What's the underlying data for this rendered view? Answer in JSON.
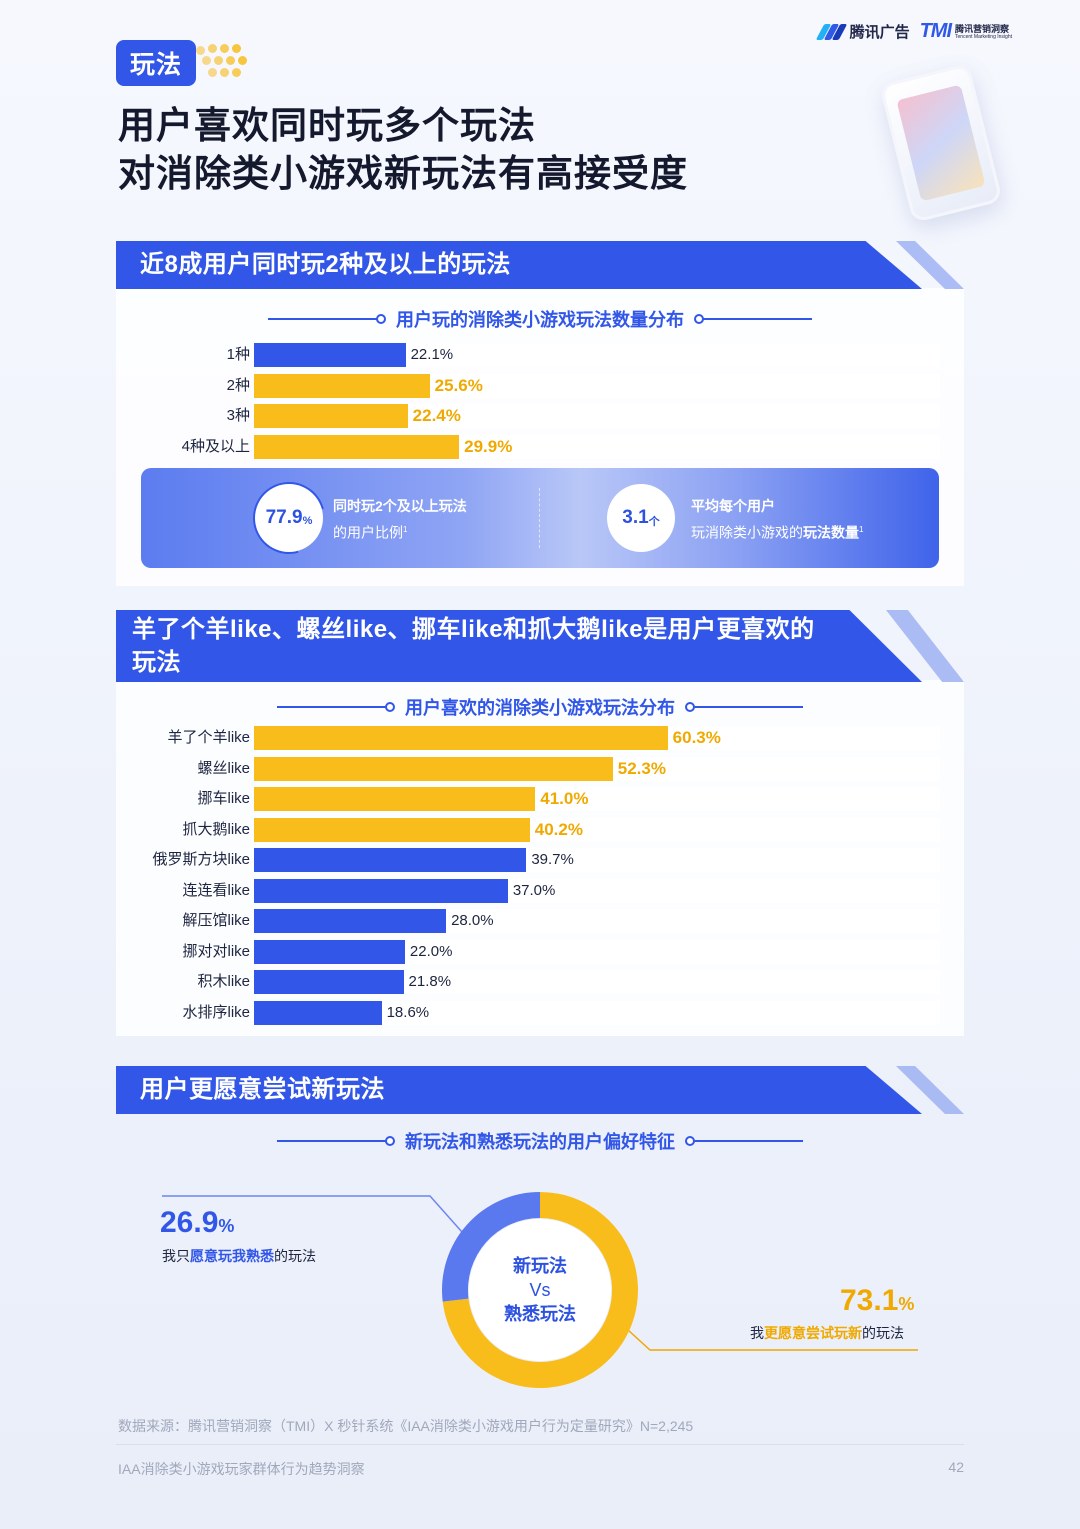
{
  "header": {
    "logo_tencent": "腾讯广告",
    "logo_tmi_mark": "TMI",
    "logo_tmi_cn": "腾讯营销洞察",
    "logo_tmi_en": "Tencent Marketing Insight"
  },
  "tag": "玩法",
  "title_line1": "用户喜欢同时玩多个玩法",
  "title_line2": "对消除类小游戏新玩法有高接受度",
  "section1": {
    "banner": "近8成用户同时玩2种及以上的玩法",
    "chart_title": "用户玩的消除类小游戏玩法数量分布",
    "stat1_value": "77.9",
    "stat1_unit": "%",
    "stat1_line1": "同时玩2个及以上玩法",
    "stat1_line2": "的用户比例",
    "stat2_value": "3.1",
    "stat2_unit": "个",
    "stat2_line1": "平均每个用户",
    "stat2_line2_a": "玩消除类小游戏的",
    "stat2_line2_b": "玩法数量",
    "footnote_mark": "1"
  },
  "section2": {
    "banner_line1": "羊了个羊like、螺丝like、挪车like和抓大鹅like是用户更喜欢的",
    "banner_line2": "玩法",
    "chart_title": "用户喜欢的消除类小游戏玩法分布"
  },
  "section3": {
    "banner": "用户更愿意尝试新玩法",
    "chart_title": "新玩法和熟悉玩法的用户偏好特征",
    "center_line1": "新玩法",
    "center_line2": "Vs",
    "center_line3": "熟悉玩法",
    "familiar_value": "26.9",
    "familiar_unit": "%",
    "familiar_desc_a": "我只",
    "familiar_desc_b": "愿意玩我熟悉",
    "familiar_desc_c": "的玩法",
    "new_value": "73.1",
    "new_unit": "%",
    "new_desc_a": "我",
    "new_desc_b": "更愿意尝试玩新",
    "new_desc_c": "的玩法"
  },
  "source": "数据来源：腾讯营销洞察（TMI）X 秒针系统《IAA消除类小游戏用户行为定量研究》N=2,245",
  "footer": {
    "left": "IAA消除类小游戏玩家群体行为趋势洞察",
    "page": "42"
  },
  "colors": {
    "blue": "#3257e8",
    "yellow": "#f9bd1b",
    "yellow_text": "#f0a900"
  },
  "chart_data": [
    {
      "type": "bar",
      "orientation": "horizontal",
      "title": "用户玩的消除类小游戏玩法数量分布",
      "categories": [
        "1种",
        "2种",
        "3种",
        "4种及以上"
      ],
      "values": [
        22.1,
        25.6,
        22.4,
        29.9
      ],
      "labels": [
        "22.1%",
        "25.6%",
        "22.4%",
        "29.9%"
      ],
      "highlight": [
        false,
        true,
        true,
        true
      ],
      "xlim": [
        0,
        100
      ]
    },
    {
      "type": "bar",
      "orientation": "horizontal",
      "title": "用户喜欢的消除类小游戏玩法分布",
      "categories": [
        "羊了个羊like",
        "螺丝like",
        "挪车like",
        "抓大鹅like",
        "俄罗斯方块like",
        "连连看like",
        "解压馆like",
        "挪对对like",
        "积木like",
        "水排序like"
      ],
      "values": [
        60.3,
        52.3,
        41.0,
        40.2,
        39.7,
        37.0,
        28.0,
        22.0,
        21.8,
        18.6
      ],
      "labels": [
        "60.3%",
        "52.3%",
        "41.0%",
        "40.2%",
        "39.7%",
        "37.0%",
        "28.0%",
        "22.0%",
        "21.8%",
        "18.6%"
      ],
      "highlight": [
        true,
        true,
        true,
        true,
        false,
        false,
        false,
        false,
        false,
        false
      ],
      "xlim": [
        0,
        100
      ]
    },
    {
      "type": "pie",
      "title": "新玩法和熟悉玩法的用户偏好特征",
      "slices": [
        {
          "value": 73.1,
          "label": "73.1%",
          "color": "#f9bd1b"
        },
        {
          "value": 26.9,
          "label": "26.9%",
          "color": "#5a79ee"
        }
      ]
    }
  ]
}
